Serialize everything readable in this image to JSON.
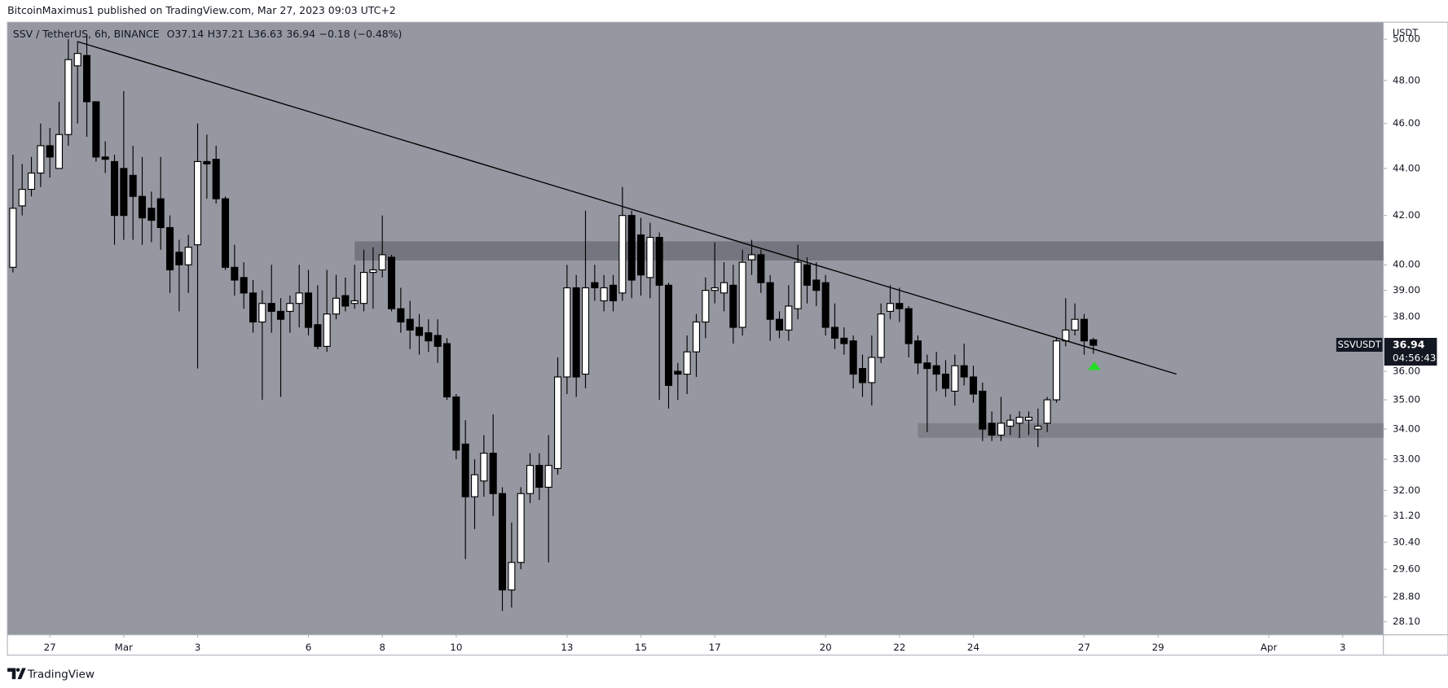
{
  "page": {
    "published": "BitcoinMaximus1 published on TradingView.com, Mar 27, 2023 09:03 UTC+2",
    "brand": "TradingView"
  },
  "chart_data": {
    "type": "candlestick",
    "title": "SSV / TetherUS, 6h, BINANCE",
    "quote": [
      "O37.14",
      "H37.21",
      "L36.63",
      "36.94",
      "−0.18 (−0.48%)"
    ],
    "y_axis_label": "USDT",
    "log_scale": true,
    "grid": false,
    "background": "#9598a1",
    "up_color": "#ffffff",
    "down_color": "#000000",
    "wick_color": "#000000",
    "x": [
      "2023-02-26T00:00",
      "2023-02-26T06:00",
      "2023-02-26T12:00",
      "2023-02-26T18:00",
      "2023-02-27T00:00",
      "2023-02-27T06:00",
      "2023-02-27T12:00",
      "2023-02-27T18:00",
      "2023-02-28T00:00",
      "2023-02-28T06:00",
      "2023-02-28T12:00",
      "2023-02-28T18:00",
      "2023-03-01T00:00",
      "2023-03-01T06:00",
      "2023-03-01T12:00",
      "2023-03-01T18:00",
      "2023-03-02T00:00",
      "2023-03-02T06:00",
      "2023-03-02T12:00",
      "2023-03-02T18:00",
      "2023-03-03T00:00",
      "2023-03-03T06:00",
      "2023-03-03T12:00",
      "2023-03-03T18:00",
      "2023-03-04T00:00",
      "2023-03-04T06:00",
      "2023-03-04T12:00",
      "2023-03-04T18:00",
      "2023-03-05T00:00",
      "2023-03-05T06:00",
      "2023-03-05T12:00",
      "2023-03-05T18:00",
      "2023-03-06T00:00",
      "2023-03-06T06:00",
      "2023-03-06T12:00",
      "2023-03-06T18:00",
      "2023-03-07T00:00",
      "2023-03-07T06:00",
      "2023-03-07T12:00",
      "2023-03-07T18:00",
      "2023-03-08T00:00",
      "2023-03-08T06:00",
      "2023-03-08T12:00",
      "2023-03-08T18:00",
      "2023-03-09T00:00",
      "2023-03-09T06:00",
      "2023-03-09T12:00",
      "2023-03-09T18:00",
      "2023-03-10T00:00",
      "2023-03-10T06:00",
      "2023-03-10T12:00",
      "2023-03-10T18:00",
      "2023-03-11T00:00",
      "2023-03-11T06:00",
      "2023-03-11T12:00",
      "2023-03-11T18:00",
      "2023-03-12T00:00",
      "2023-03-12T06:00",
      "2023-03-12T12:00",
      "2023-03-12T18:00",
      "2023-03-13T00:00",
      "2023-03-13T06:00",
      "2023-03-13T12:00",
      "2023-03-13T18:00",
      "2023-03-14T00:00",
      "2023-03-14T06:00",
      "2023-03-14T12:00",
      "2023-03-14T18:00",
      "2023-03-15T00:00",
      "2023-03-15T06:00",
      "2023-03-15T12:00",
      "2023-03-15T18:00",
      "2023-03-16T00:00",
      "2023-03-16T06:00",
      "2023-03-16T12:00",
      "2023-03-16T18:00",
      "2023-03-17T00:00",
      "2023-03-17T06:00",
      "2023-03-17T12:00",
      "2023-03-17T18:00",
      "2023-03-18T00:00",
      "2023-03-18T06:00",
      "2023-03-18T12:00",
      "2023-03-18T18:00",
      "2023-03-19T00:00",
      "2023-03-19T06:00",
      "2023-03-19T12:00",
      "2023-03-19T18:00",
      "2023-03-20T00:00",
      "2023-03-20T06:00",
      "2023-03-20T12:00",
      "2023-03-20T18:00",
      "2023-03-21T00:00",
      "2023-03-21T06:00",
      "2023-03-21T12:00",
      "2023-03-21T18:00",
      "2023-03-22T00:00",
      "2023-03-22T06:00",
      "2023-03-22T12:00",
      "2023-03-22T18:00",
      "2023-03-23T00:00",
      "2023-03-23T06:00",
      "2023-03-23T12:00",
      "2023-03-23T18:00",
      "2023-03-24T00:00",
      "2023-03-24T06:00",
      "2023-03-24T12:00",
      "2023-03-24T18:00",
      "2023-03-25T00:00",
      "2023-03-25T06:00",
      "2023-03-25T12:00",
      "2023-03-25T18:00",
      "2023-03-26T00:00",
      "2023-03-26T06:00",
      "2023-03-26T12:00",
      "2023-03-26T18:00",
      "2023-03-27T00:00",
      "2023-03-27T06:00"
    ],
    "open": [
      39.9,
      42.4,
      43.1,
      43.8,
      45,
      44,
      45.5,
      48.7,
      49.2,
      47,
      44.5,
      44.3,
      44,
      43.7,
      42.8,
      42.3,
      42.7,
      41.5,
      40.5,
      40,
      40.8,
      44.3,
      44.4,
      42.7,
      39.9,
      39.5,
      38.9,
      37.8,
      38.5,
      38.2,
      38.2,
      38.5,
      38.9,
      37.7,
      36.9,
      38.1,
      38.8,
      38.5,
      38.5,
      39.7,
      39.8,
      40.3,
      38.3,
      37.9,
      37.6,
      37.4,
      37.3,
      37.0,
      35.1,
      33.5,
      31.8,
      32.3,
      33.2,
      31.9,
      29.0,
      29.8,
      31.9,
      32.8,
      32.1,
      32.7,
      35.8,
      39.1,
      35.9,
      39.3,
      38.6,
      39.2,
      38.9,
      42,
      41.2,
      39.5,
      41.1,
      39.2,
      36,
      35.9,
      36.7,
      37.8,
      39,
      38.9,
      39.2,
      37.6,
      40.2,
      40.4,
      39.3,
      37.9,
      37.5,
      38.3,
      40,
      39.4,
      39.3,
      37.6,
      37.2,
      37.1,
      36.1,
      35.6,
      36.5,
      38.2,
      38.5,
      38.3,
      37.1,
      36.3,
      36.2,
      35.9,
      35.3,
      36.2,
      35.8,
      35.3,
      34.2,
      33.8,
      34.1,
      34.2,
      34.3,
      34.0,
      34.2,
      35,
      37.1,
      37.5,
      37.9,
      37.14
    ],
    "high": [
      44.6,
      44.2,
      44.5,
      46,
      45.8,
      47,
      50,
      49.9,
      50.2,
      47,
      45.2,
      44.6,
      47.5,
      45,
      44.5,
      43,
      44.5,
      42,
      41,
      41.2,
      46,
      45.5,
      45,
      42.8,
      40.8,
      40.1,
      39.4,
      39,
      40,
      38.7,
      38.8,
      40,
      39.8,
      39.2,
      39.8,
      39.6,
      39.5,
      40,
      40.6,
      40.7,
      42,
      40.4,
      39.1,
      38.6,
      38.1,
      37.9,
      37.9,
      37.2,
      35.2,
      34.3,
      33,
      33.8,
      34.5,
      32.1,
      31,
      32.1,
      33.2,
      33.2,
      33.8,
      36.5,
      40,
      39.6,
      42.2,
      40,
      39.6,
      39.6,
      43.2,
      42.2,
      41.9,
      41.7,
      41.3,
      39.3,
      36.3,
      37.3,
      38.1,
      39.5,
      40.9,
      40.1,
      40,
      40.6,
      41,
      40.6,
      39.6,
      38.2,
      39.2,
      40.8,
      40.3,
      40.1,
      39.6,
      38.5,
      37.6,
      37.3,
      36.6,
      37.3,
      38.5,
      39.2,
      39.1,
      38.4,
      37.3,
      36.6,
      36.7,
      36.4,
      36.6,
      37,
      36.2,
      35.6,
      34.6,
      35.1,
      34.5,
      34.6,
      34.6,
      34.7,
      35.1,
      37.2,
      38.7,
      38.5,
      38.1,
      37.21
    ],
    "low": [
      39.7,
      42,
      42.8,
      43.2,
      43.6,
      44,
      45,
      46,
      45.4,
      44.3,
      43.8,
      40.8,
      41,
      41,
      40.8,
      40.9,
      40.6,
      38.9,
      38.2,
      38.9,
      36.1,
      42.7,
      42.5,
      39.8,
      38.8,
      38.3,
      37.4,
      35,
      37.4,
      35.1,
      37.4,
      37.6,
      37.3,
      36.8,
      36.7,
      37.9,
      38.2,
      38.3,
      38.2,
      38.3,
      39.5,
      38.2,
      37.4,
      36.8,
      36.6,
      36.7,
      36.3,
      35,
      33,
      29.9,
      30.8,
      31.8,
      31.2,
      28.4,
      28.5,
      29.6,
      31.6,
      31.7,
      29.8,
      32.5,
      35.2,
      35.1,
      35.4,
      38.6,
      38.2,
      38.2,
      38.6,
      38.7,
      38.8,
      38.7,
      35,
      34.7,
      35,
      35.2,
      35.8,
      37.2,
      38.5,
      38.2,
      37,
      37.3,
      39.6,
      38.9,
      37.1,
      37.2,
      37.1,
      37.9,
      38.5,
      38.4,
      37.3,
      36.8,
      36.6,
      35.4,
      35.1,
      34.8,
      36.3,
      37.9,
      37.8,
      36.5,
      35.9,
      33.9,
      35.3,
      35.1,
      34.8,
      35.5,
      34.9,
      33.6,
      33.6,
      33.6,
      33.8,
      33.7,
      33.8,
      33.4,
      33.9,
      34.9,
      36.9,
      37.3,
      36.6,
      36.63
    ],
    "close": [
      42.3,
      43.1,
      43.8,
      45,
      44.5,
      45.5,
      49,
      49.3,
      47,
      44.5,
      44.4,
      42,
      42,
      42.8,
      41.9,
      41.8,
      41.5,
      39.8,
      40,
      40.7,
      44.3,
      44.2,
      42.7,
      39.9,
      39.4,
      38.9,
      37.8,
      38.5,
      38.2,
      37.9,
      38.5,
      38.9,
      37.6,
      36.9,
      38.1,
      38.7,
      38.4,
      38.6,
      39.7,
      39.8,
      40.4,
      38.3,
      37.8,
      37.5,
      37.3,
      37.1,
      36.9,
      35.1,
      33.3,
      31.8,
      32.5,
      33.2,
      31.9,
      29.0,
      29.8,
      31.9,
      32.8,
      32.1,
      32.8,
      35.8,
      39.1,
      35.8,
      39.1,
      39.1,
      39.1,
      38.6,
      42,
      39.4,
      39.6,
      41.1,
      39.2,
      35.5,
      35.9,
      36.7,
      37.8,
      39,
      39.1,
      39.3,
      37.6,
      40.1,
      40.4,
      39.3,
      37.9,
      37.5,
      38.4,
      40.1,
      39.2,
      39,
      37.6,
      37.2,
      37.0,
      35.9,
      35.6,
      36.5,
      38.1,
      38.5,
      38.3,
      37,
      36.3,
      36.1,
      35.9,
      35.4,
      36.2,
      35.8,
      35.2,
      34,
      33.8,
      34.2,
      34.3,
      34.4,
      34.4,
      34.1,
      35,
      37.1,
      37.5,
      37.9,
      37.1,
      36.94
    ],
    "xlim": [
      "2023-02-25T20:24",
      "2023-04-04T02:24"
    ],
    "xticks": [
      {
        "value": "2023-02-27T00:00",
        "label": "27"
      },
      {
        "value": "2023-03-01T00:00",
        "label": "Mar"
      },
      {
        "value": "2023-03-03T00:00",
        "label": "3"
      },
      {
        "value": "2023-03-06T00:00",
        "label": "6"
      },
      {
        "value": "2023-03-08T00:00",
        "label": "8"
      },
      {
        "value": "2023-03-10T00:00",
        "label": "10"
      },
      {
        "value": "2023-03-13T00:00",
        "label": "13"
      },
      {
        "value": "2023-03-15T00:00",
        "label": "15"
      },
      {
        "value": "2023-03-17T00:00",
        "label": "17"
      },
      {
        "value": "2023-03-20T00:00",
        "label": "20"
      },
      {
        "value": "2023-03-22T00:00",
        "label": "22"
      },
      {
        "value": "2023-03-24T00:00",
        "label": "24"
      },
      {
        "value": "2023-03-27T00:00",
        "label": "27"
      },
      {
        "value": "2023-03-29T00:00",
        "label": "29"
      },
      {
        "value": "2023-04-01T00:00",
        "label": "Apr"
      },
      {
        "value": "2023-04-03T00:00",
        "label": "3"
      }
    ],
    "ylim": [
      27.74,
      50.85
    ],
    "yticks": [
      {
        "value": 28.1,
        "label": "28.10"
      },
      {
        "value": 28.8,
        "label": "28.80"
      },
      {
        "value": 29.6,
        "label": "29.60"
      },
      {
        "value": 30.4,
        "label": "30.40"
      },
      {
        "value": 31.2,
        "label": "31.20"
      },
      {
        "value": 32,
        "label": "32.00"
      },
      {
        "value": 33,
        "label": "33.00"
      },
      {
        "value": 34,
        "label": "34.00"
      },
      {
        "value": 35,
        "label": "35.00"
      },
      {
        "value": 36,
        "label": "36.00"
      },
      {
        "value": 38,
        "label": "38.00"
      },
      {
        "value": 39,
        "label": "39.00"
      },
      {
        "value": 40,
        "label": "40.00"
      },
      {
        "value": 42,
        "label": "42.00"
      },
      {
        "value": 44,
        "label": "44.00"
      },
      {
        "value": 46,
        "label": "46.00"
      },
      {
        "value": 48,
        "label": "48.00"
      },
      {
        "value": 50,
        "label": "50.00"
      }
    ],
    "trendline": {
      "color": "#000000",
      "start": {
        "x": "2023-02-27T18:00",
        "price": 49.88
      },
      "end": {
        "x": "2023-03-29T12:00",
        "price": 35.9
      }
    },
    "zones": [
      {
        "x": "2023-03-07T06:00",
        "top": 40.94,
        "bottom": 40.17,
        "color": "#6e7079"
      },
      {
        "x": "2023-03-22T12:00",
        "top": 34.2,
        "bottom": 33.71,
        "color": "#7a7c84"
      }
    ],
    "last_price": {
      "symbol": "SSVUSDT",
      "value": 36.94,
      "countdown": "04:56:43"
    }
  }
}
